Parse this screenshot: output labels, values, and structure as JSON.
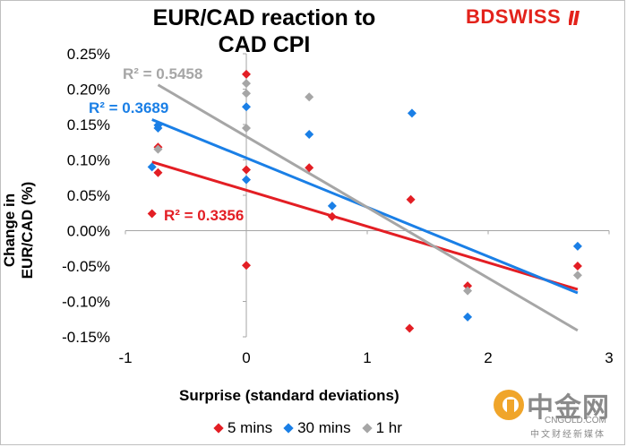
{
  "chart_data": {
    "type": "scatter",
    "title": "EUR/CAD reaction to CAD CPI",
    "xlabel": "Surprise (standard deviations)",
    "ylabel": "Change in EUR/CAD (%)",
    "xlim": [
      -1,
      3
    ],
    "ylim": [
      -0.0015,
      0.0025
    ],
    "x_ticks": [
      -1,
      0,
      1,
      2,
      3
    ],
    "x_tick_labels": [
      "-1",
      "0",
      "1",
      "2",
      "3"
    ],
    "y_ticks": [
      -0.0015,
      -0.001,
      -0.0005,
      0,
      0.0005,
      0.001,
      0.0015,
      0.002,
      0.0025
    ],
    "y_tick_labels": [
      "-0.15%",
      "-0.10%",
      "-0.05%",
      "0.00%",
      "0.05%",
      "0.10%",
      "0.15%",
      "0.20%",
      "0.25%"
    ],
    "legend_position": "bottom",
    "series": [
      {
        "name": "5 mins",
        "color": "#e31e24",
        "marker": "diamond",
        "points": [
          [
            -0.78,
            0.00024
          ],
          [
            -0.73,
            0.00118
          ],
          [
            -0.73,
            0.00082
          ],
          [
            0.0,
            0.00221
          ],
          [
            0.0,
            0.00086
          ],
          [
            0.0,
            -0.00049
          ],
          [
            0.52,
            0.00089
          ],
          [
            0.71,
            0.0002
          ],
          [
            1.35,
            -0.00138
          ],
          [
            1.36,
            0.00044
          ],
          [
            1.83,
            -0.00078
          ],
          [
            2.74,
            -0.0005
          ]
        ],
        "trendline": {
          "x": [
            -0.78,
            2.74
          ],
          "y": [
            0.00097,
            -0.00083
          ],
          "r2_label": "R² = 0.3356"
        }
      },
      {
        "name": "30 mins",
        "color": "#1a7fe6",
        "marker": "diamond",
        "points": [
          [
            -0.78,
            0.0009
          ],
          [
            -0.73,
            0.00149
          ],
          [
            -0.73,
            0.00145
          ],
          [
            0.0,
            0.00175
          ],
          [
            0.0,
            0.00072
          ],
          [
            0.52,
            0.00136
          ],
          [
            0.71,
            0.00035
          ],
          [
            1.37,
            0.00166
          ],
          [
            1.83,
            -0.00122
          ],
          [
            2.74,
            -0.00022
          ]
        ],
        "trendline": {
          "x": [
            -0.78,
            2.74
          ],
          "y": [
            0.00157,
            -0.00088
          ],
          "r2_label": "R² = 0.3689"
        }
      },
      {
        "name": "1 hr",
        "color": "#a6a6a6",
        "marker": "diamond",
        "points": [
          [
            -0.73,
            0.00115
          ],
          [
            0.0,
            0.00208
          ],
          [
            0.0,
            0.00194
          ],
          [
            0.0,
            0.00145
          ],
          [
            0.52,
            0.00189
          ],
          [
            1.83,
            -0.00085
          ],
          [
            2.74,
            -0.00063
          ]
        ],
        "trendline": {
          "x": [
            -0.73,
            2.74
          ],
          "y": [
            0.00206,
            -0.00141
          ],
          "r2_label": "R² = 0.5458"
        }
      }
    ]
  },
  "branding": {
    "logo_text_bd": "BD",
    "logo_text_swiss": "SWISS",
    "watermark_main": "中金网",
    "watermark_domain": "CNGOLD.COM",
    "watermark_sub": "中文财经新媒体"
  }
}
